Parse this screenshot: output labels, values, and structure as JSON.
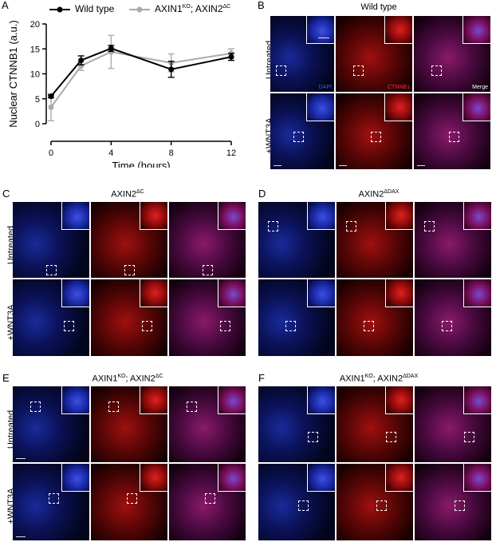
{
  "panels": {
    "A": "A",
    "B": "B",
    "C": "C",
    "D": "D",
    "E": "E",
    "F": "F"
  },
  "titles": {
    "B": "Wild type",
    "C_main": "AXIN2",
    "C_sup": "ΔC",
    "D_main": "AXIN2",
    "D_sup": "ΔDAX",
    "E_pre": "AXIN1",
    "E_pre_sup": "KO",
    "E_mid": "; AXIN2",
    "E_sup": "ΔC",
    "F_pre": "AXIN1",
    "F_pre_sup": "KO",
    "F_mid": "; AXIN2",
    "F_sup": "ΔDAX"
  },
  "rows": {
    "untreated": "Untreated",
    "wnt3a": "+WNT3A"
  },
  "channels": {
    "dapi": "DAPI",
    "ctnnb1": "CTNNB1",
    "merge": "Merge"
  },
  "chart_data": {
    "type": "line",
    "xlabel": "Time (hours)",
    "ylabel": "Nuclear CTNNB1 (a.u.)",
    "xlim": [
      0,
      12
    ],
    "ylim": [
      0,
      20
    ],
    "xticks": [
      "0",
      "4",
      "8",
      "12"
    ],
    "yticks": [
      "0",
      "5",
      "10",
      "15",
      "20"
    ],
    "legend_position": "top",
    "series": [
      {
        "name": "Wild type",
        "color": "#000000",
        "x": [
          0,
          2,
          4,
          8,
          12
        ],
        "y": [
          5.5,
          12.7,
          15.1,
          10.9,
          13.4
        ],
        "err": [
          0.3,
          0.9,
          0.6,
          1.6,
          0.7
        ]
      },
      {
        "name": "AXIN1",
        "name_sup": "KO",
        "name_mid": "; AXIN2",
        "name_sup2": "ΔC",
        "color": "#aaaaaa",
        "x": [
          0,
          2,
          4,
          8,
          12
        ],
        "y": [
          3.3,
          11.6,
          14.4,
          12.2,
          14.1
        ],
        "err": [
          2.7,
          0.9,
          3.3,
          1.8,
          0.9
        ]
      }
    ]
  }
}
